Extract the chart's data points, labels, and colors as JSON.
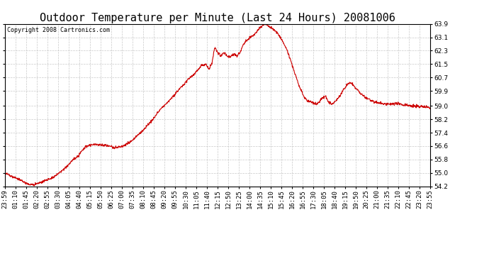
{
  "title": "Outdoor Temperature per Minute (Last 24 Hours) 20081006",
  "copyright_text": "Copyright 2008 Cartronics.com",
  "line_color": "#cc0000",
  "background_color": "#ffffff",
  "grid_color": "#bbbbbb",
  "ylim": [
    54.2,
    63.9
  ],
  "yticks": [
    54.2,
    55.0,
    55.8,
    56.6,
    57.4,
    58.2,
    59.0,
    59.9,
    60.7,
    61.5,
    62.3,
    63.1,
    63.9
  ],
  "xtick_labels": [
    "23:59",
    "01:10",
    "01:45",
    "02:20",
    "02:55",
    "03:30",
    "04:05",
    "04:40",
    "05:15",
    "05:50",
    "06:25",
    "07:00",
    "07:35",
    "08:10",
    "08:45",
    "09:20",
    "09:55",
    "10:30",
    "11:05",
    "11:40",
    "12:15",
    "12:50",
    "13:25",
    "14:00",
    "14:35",
    "15:10",
    "15:45",
    "16:20",
    "16:55",
    "17:30",
    "18:05",
    "18:40",
    "19:15",
    "19:50",
    "20:25",
    "21:00",
    "21:35",
    "22:10",
    "22:45",
    "23:20",
    "23:55"
  ],
  "line_width": 0.8,
  "title_fontsize": 11,
  "tick_fontsize": 6.5,
  "copyright_fontsize": 6
}
